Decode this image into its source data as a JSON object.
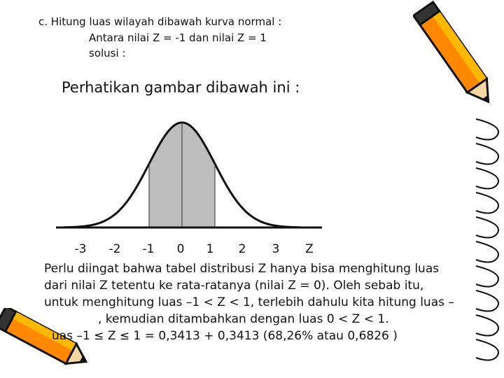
{
  "problem": {
    "line1": "c. Hitung luas wilayah dibawah kurva normal :",
    "line2": "Antara nilai Z = -1 dan nilai Z = 1",
    "line3": "solusi :"
  },
  "instruction": "Perhatikan gambar dibawah ini :",
  "axis": {
    "ticks": [
      "-3",
      "-2",
      "-1",
      "0",
      "1",
      "2",
      "3"
    ],
    "label": "Z"
  },
  "explanation": {
    "line1": "Perlu diingat bahwa tabel distribusi Z hanya bisa menghitung luas",
    "line2": "dari nilai Z tetentu ke rata-ratanya (nilai Z = 0). Oleh sebab itu,",
    "line3": "untuk menghitung luas –1 < Z < 1, terlebih dahulu kita hitung luas –",
    "line4_visible": ", kemudian ditambahkan dengan luas 0 < Z < 1.",
    "line5_visible": "uas –1 ≤ Z ≤ 1 = 0,3413 + 0,3413 (68,26% atau 0,6826 )"
  },
  "colors": {
    "shade": "#bdbdbd",
    "pencil_yellow": "#ffb800",
    "pencil_orange": "#ff8800",
    "pencil_dark": "#222222"
  }
}
